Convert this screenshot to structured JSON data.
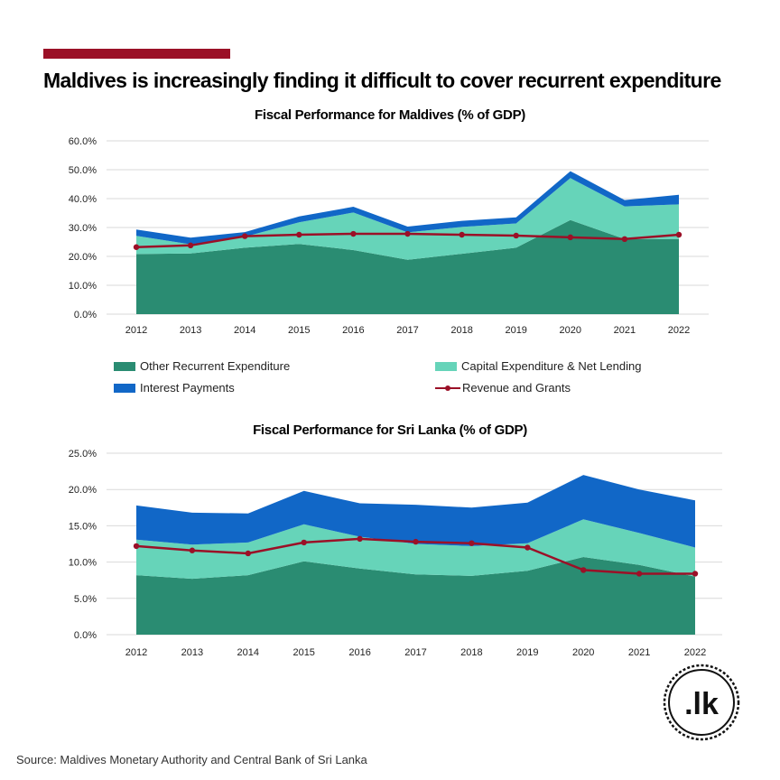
{
  "header": {
    "title": "Maldives is increasingly finding it difficult to cover recurrent expenditure"
  },
  "colors": {
    "accent": "#9b1027",
    "other_recurrent": "#2a8c72",
    "capital": "#66d4b9",
    "interest": "#1167c7",
    "revenue": "#9b1027"
  },
  "legend": {
    "other_recurrent": "Other Recurrent Expenditure",
    "capital": "Capital Expenditure & Net Lending",
    "interest": "Interest Payments",
    "revenue": "Revenue and Grants"
  },
  "chart_data": [
    {
      "type": "area",
      "title": "Fiscal Performance for Maldives (% of GDP)",
      "categories": [
        "2012",
        "2013",
        "2014",
        "2015",
        "2016",
        "2017",
        "2018",
        "2019",
        "2020",
        "2021",
        "2022"
      ],
      "ylim": [
        0,
        60
      ],
      "yticks": [
        "0.0%",
        "10.0%",
        "20.0%",
        "30.0%",
        "40.0%",
        "50.0%",
        "60.0%"
      ],
      "grid": true,
      "stacked": true,
      "series": [
        {
          "name": "Other Recurrent Expenditure",
          "key": "other_recurrent",
          "values": [
            20.8,
            21.0,
            23.0,
            24.3,
            22.2,
            18.8,
            20.9,
            23.0,
            32.6,
            26.0,
            26.0
          ]
        },
        {
          "name": "Capital Expenditure & Net Lending",
          "key": "capital",
          "values": [
            6.3,
            3.2,
            3.8,
            7.5,
            13.0,
            9.5,
            9.3,
            8.4,
            14.5,
            11.3,
            12.0
          ]
        },
        {
          "name": "Interest Payments",
          "key": "interest",
          "values": [
            2.2,
            2.3,
            1.6,
            2.0,
            2.0,
            2.0,
            2.1,
            2.1,
            2.4,
            2.2,
            3.3
          ]
        }
      ],
      "line": {
        "name": "Revenue and Grants",
        "key": "revenue",
        "values": [
          23.2,
          23.8,
          27.0,
          27.5,
          27.8,
          27.8,
          27.5,
          27.2,
          26.6,
          26.0,
          27.5
        ]
      }
    },
    {
      "type": "area",
      "title": "Fiscal Performance for Sri Lanka (% of GDP)",
      "categories": [
        "2012",
        "2013",
        "2014",
        "2015",
        "2016",
        "2017",
        "2018",
        "2019",
        "2020",
        "2021",
        "2022"
      ],
      "ylim": [
        0,
        25
      ],
      "yticks": [
        "0.0%",
        "5.0%",
        "10.0%",
        "15.0%",
        "20.0%",
        "25.0%"
      ],
      "grid": true,
      "stacked": true,
      "series": [
        {
          "name": "Other Recurrent Expenditure",
          "key": "other_recurrent",
          "values": [
            8.2,
            7.7,
            8.2,
            10.1,
            9.1,
            8.3,
            8.1,
            8.8,
            10.7,
            9.6,
            8.0
          ]
        },
        {
          "name": "Capital Expenditure & Net Lending",
          "key": "capital",
          "values": [
            4.9,
            4.7,
            4.5,
            5.1,
            4.4,
            4.2,
            4.1,
            3.8,
            5.2,
            4.4,
            4.0
          ]
        },
        {
          "name": "Interest Payments",
          "key": "interest",
          "values": [
            4.7,
            4.4,
            4.0,
            4.6,
            4.6,
            5.4,
            5.3,
            5.6,
            6.1,
            6.0,
            6.5
          ]
        }
      ],
      "line": {
        "name": "Revenue and Grants",
        "key": "revenue",
        "values": [
          12.2,
          11.6,
          11.2,
          12.7,
          13.2,
          12.8,
          12.6,
          12.0,
          8.9,
          8.4,
          8.4
        ]
      }
    }
  ],
  "source": "Source: Maldives Monetary Authority and Central Bank of Sri Lanka",
  "logo": {
    "text": ".lk"
  }
}
